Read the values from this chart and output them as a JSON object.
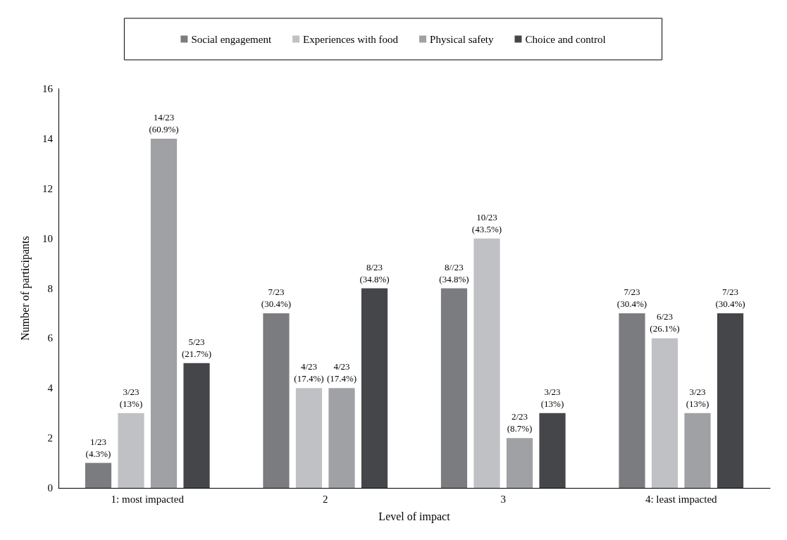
{
  "chart_data": {
    "type": "bar",
    "xlabel": "Level of impact",
    "ylabel": "Number of participants",
    "categories": [
      "1: most impacted",
      "2",
      "3",
      "4: least impacted"
    ],
    "series": [
      {
        "name": "Social engagement",
        "color": "#7b7c80",
        "values": [
          1,
          7,
          8,
          7
        ],
        "value_labels": [
          "1/23\n(4.3%)",
          "7/23\n(30.4%)",
          "8//23\n(34.8%)",
          "7/23\n(30.4%)"
        ]
      },
      {
        "name": "Experiences with food",
        "color": "#c0c1c4",
        "values": [
          3,
          4,
          10,
          6
        ],
        "value_labels": [
          "3/23\n(13%)",
          "4/23\n(17.4%)",
          "10/23\n(43.5%)",
          "6/23\n(26.1%)"
        ]
      },
      {
        "name": "Physical safety",
        "color": "#a0a1a4",
        "values": [
          14,
          4,
          2,
          3
        ],
        "value_labels": [
          "14/23\n(60.9%)",
          "4/23\n(17.4%)",
          "2/23\n(8.7%)",
          "3/23\n(13%)"
        ]
      },
      {
        "name": "Choice and control",
        "color": "#45464a",
        "values": [
          5,
          8,
          3,
          7
        ],
        "value_labels": [
          "5/23\n(21.7%)",
          "8/23\n(34.8%)",
          "3/23\n(13%)",
          "7/23\n(30.4%)"
        ]
      }
    ],
    "ylim": [
      0,
      16
    ],
    "yticks": [
      0,
      2,
      4,
      6,
      8,
      10,
      12,
      14,
      16
    ],
    "grid": false,
    "legend": "top"
  }
}
